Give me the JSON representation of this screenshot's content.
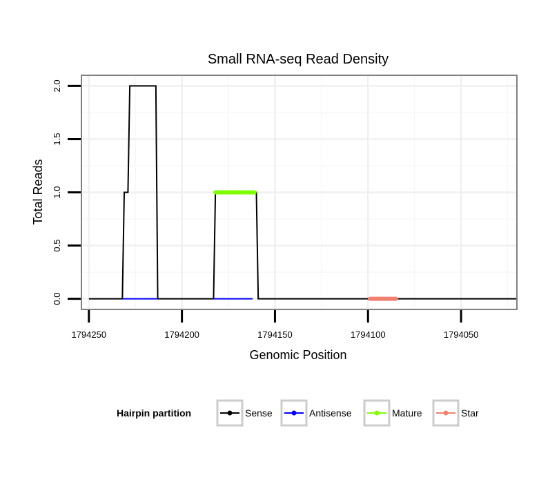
{
  "chart_data": {
    "type": "line",
    "title": "Small RNA-seq Read Density",
    "xlabel": "Genomic Position",
    "ylabel": "Total Reads",
    "x_reversed": true,
    "xlim": [
      1794254,
      1794020
    ],
    "ylim": [
      -0.1,
      2.1
    ],
    "x_ticks": [
      1794250,
      1794200,
      1794150,
      1794100,
      1794050
    ],
    "x_tick_labels": [
      "1794250",
      "1794200",
      "1794150",
      "1794100",
      "1794050"
    ],
    "y_ticks": [
      0.0,
      0.5,
      1.0,
      1.5,
      2.0
    ],
    "y_tick_labels": [
      "0.0",
      "0.5",
      "1.0",
      "1.5",
      "2.0"
    ],
    "grid": true,
    "legend": {
      "title": "Hairpin partition",
      "position": "bottom",
      "entries": [
        {
          "name": "Sense",
          "color": "#000000"
        },
        {
          "name": "Antisense",
          "color": "#0000ff"
        },
        {
          "name": "Mature",
          "color": "#7fff00"
        },
        {
          "name": "Star",
          "color": "#f08070"
        }
      ]
    },
    "series": [
      {
        "name": "Sense",
        "color": "#000000",
        "x": [
          1794250,
          1794232,
          1794231,
          1794229,
          1794228,
          1794226,
          1794214,
          1794213,
          1794183,
          1794182,
          1794160,
          1794159,
          1794020
        ],
        "y": [
          0,
          0,
          1,
          1,
          2,
          2,
          2,
          0,
          0,
          1,
          1,
          0,
          0
        ]
      },
      {
        "name": "Antisense",
        "color": "#0000ff",
        "x": [
          1794232,
          1794213
        ],
        "y": [
          0,
          0
        ]
      },
      {
        "name": "Antisense",
        "color": "#0000ff",
        "x": [
          1794183,
          1794162
        ],
        "y": [
          0,
          0
        ]
      },
      {
        "name": "Mature",
        "color": "#7fff00",
        "x": [
          1794182,
          1794161
        ],
        "y": [
          1,
          1
        ]
      },
      {
        "name": "Star",
        "color": "#f08070",
        "x": [
          1794099,
          1794085
        ],
        "y": [
          0,
          0
        ]
      }
    ]
  }
}
